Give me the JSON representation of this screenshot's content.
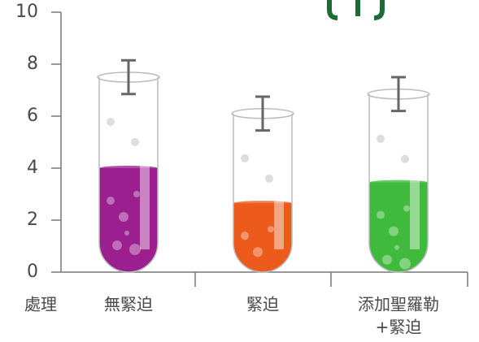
{
  "chart_data": {
    "type": "tube",
    "x_label": "處理",
    "categories": [
      [
        "無緊迫"
      ],
      [
        "緊迫"
      ],
      [
        "添加聖羅勒",
        "+緊迫"
      ]
    ],
    "values": [
      4.0,
      2.65,
      3.45
    ],
    "colors": [
      "#9b1f8f",
      "#ec5b1c",
      "#3fba3c"
    ],
    "tube_values": [
      7.5,
      6.1,
      6.85
    ],
    "errors": [
      0.65,
      0.65,
      0.65
    ],
    "ylim": [
      0,
      10
    ],
    "yticks": [
      0,
      2,
      4,
      6,
      8,
      10
    ]
  }
}
